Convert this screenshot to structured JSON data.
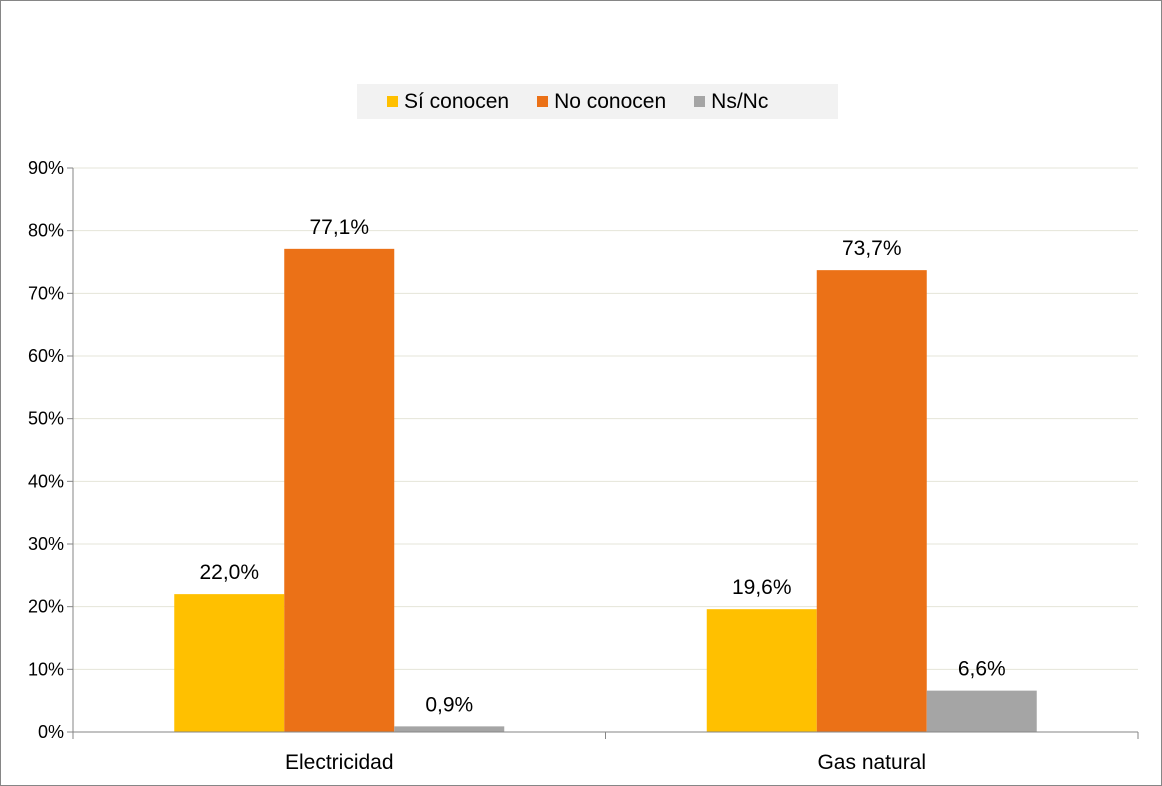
{
  "chart_data": {
    "type": "bar",
    "categories": [
      "Electricidad",
      "Gas natural"
    ],
    "series": [
      {
        "name": "Sí conocen",
        "values": [
          22.0,
          19.6
        ],
        "labels": [
          "22,0%",
          "19,6%"
        ],
        "color": "#ffc000"
      },
      {
        "name": "No conocen",
        "values": [
          77.1,
          73.7
        ],
        "labels": [
          "77,1%",
          "73,7%"
        ],
        "color": "#eb7117"
      },
      {
        "name": "Ns/Nc",
        "values": [
          0.9,
          6.6
        ],
        "labels": [
          "0,9%",
          "6,6%"
        ],
        "color": "#a5a5a5"
      }
    ],
    "ylim": [
      0,
      90
    ],
    "yticks": [
      0,
      10,
      20,
      30,
      40,
      50,
      60,
      70,
      80,
      90
    ],
    "ytick_labels": [
      "0%",
      "10%",
      "20%",
      "30%",
      "40%",
      "50%",
      "60%",
      "70%",
      "80%",
      "90%"
    ],
    "grid": true,
    "legend_position": "top"
  }
}
